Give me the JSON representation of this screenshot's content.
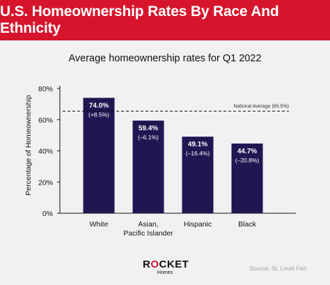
{
  "header": {
    "title": "U.S. Homeownership Rates By Race And Ethnicity",
    "subtitle": "Average homeownership rates for Q1 2022"
  },
  "footer": {
    "logo_brand_start": "R",
    "logo_brand_o": "O",
    "logo_brand_end": "CKET",
    "logo_sub": "Homes",
    "source": "Source: St. Louis Fed"
  },
  "colors": {
    "banner": "#d6152c",
    "bar": "#1e1752",
    "background": "#f1f1f2"
  },
  "chart_data": {
    "type": "bar",
    "title": "Average homeownership rates for Q1 2022",
    "ylabel": "Percentage of Homeownership",
    "xlabel": "",
    "ylim": [
      0,
      80
    ],
    "yticks": [
      0,
      20,
      40,
      60,
      80
    ],
    "ytick_labels": [
      "0%",
      "20%",
      "40%",
      "60%",
      "80%"
    ],
    "grid": false,
    "categories": [
      [
        "White"
      ],
      [
        "Asian,",
        "Pacific Islander"
      ],
      [
        "Hispanic"
      ],
      [
        "Black"
      ]
    ],
    "values": [
      74.0,
      59.4,
      49.1,
      44.7
    ],
    "value_labels": [
      "74.0%",
      "59.4%",
      "49.1%",
      "44.7%"
    ],
    "change_labels": [
      "(+8.5%)",
      "(–6.1%)",
      "(–16.4%)",
      "(–20.8%)"
    ],
    "reference_line": {
      "value": 65.5,
      "label": "National Average (65.5%)",
      "style": "dashed"
    }
  }
}
